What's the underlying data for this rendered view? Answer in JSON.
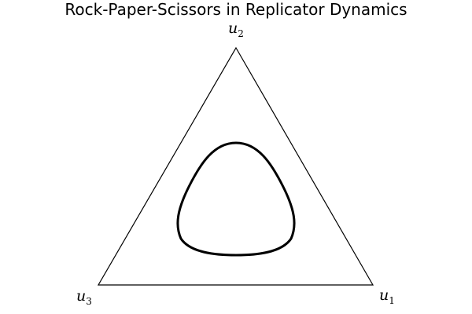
{
  "title": "Rock-Paper-Scissors in Replicator Dynamics",
  "labels": {
    "u1": {
      "base": "u",
      "sub": "1"
    },
    "u2": {
      "base": "u",
      "sub": "2"
    },
    "u3": {
      "base": "u",
      "sub": "3"
    }
  },
  "colors": {
    "background": "#ffffff",
    "simplex_edge": "#000000",
    "orbit": "#000000"
  },
  "orbit_shape": "closed rounded-triangle trajectory around the interior equilibrium"
}
